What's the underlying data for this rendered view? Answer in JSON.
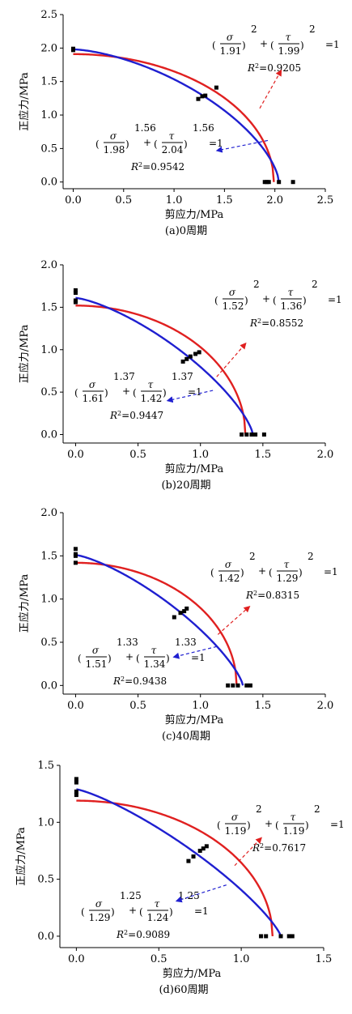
{
  "chart_data": [
    {
      "type": "scatter",
      "caption": "(a)0周期",
      "xlabel": "剪应力/MPa",
      "ylabel": "正应力/MPa",
      "xlim": [
        -0.1,
        2.5
      ],
      "ylim": [
        -0.1,
        2.5
      ],
      "xticks": [
        "0.0",
        "0.5",
        "1.0",
        "1.5",
        "2.0",
        "2.5"
      ],
      "yticks": [
        "0.0",
        "0.5",
        "1.0",
        "1.5",
        "2.0",
        "2.5"
      ],
      "points": [
        [
          0.0,
          1.97
        ],
        [
          0.0,
          1.99
        ],
        [
          1.24,
          1.24
        ],
        [
          1.28,
          1.28
        ],
        [
          1.31,
          1.29
        ],
        [
          1.42,
          1.41
        ],
        [
          1.9,
          0.0
        ],
        [
          1.92,
          0.0
        ],
        [
          1.94,
          0.0
        ],
        [
          2.04,
          0.0
        ],
        [
          2.18,
          0.0
        ]
      ],
      "series": [
        {
          "color": "#e02020",
          "sigma0": 1.91,
          "tau0": 1.99,
          "n": 2
        },
        {
          "color": "#1f1fd0",
          "sigma0": 1.98,
          "tau0": 2.04,
          "n": 1.56
        }
      ],
      "annotations": [
        {
          "sigma": "1.91",
          "tau": "1.99",
          "exp": "2",
          "r2": "0.9205"
        },
        {
          "sigma": "1.98",
          "tau": "2.04",
          "exp": "1.56",
          "r2": "0.9542"
        }
      ]
    },
    {
      "type": "scatter",
      "caption": "(b)20周期",
      "xlabel": "剪应力/MPa",
      "ylabel": "正应力/MPa",
      "xlim": [
        -0.1,
        2.0
      ],
      "ylim": [
        -0.1,
        2.0
      ],
      "xticks": [
        "0.0",
        "0.5",
        "1.0",
        "1.5",
        "2.0"
      ],
      "yticks": [
        "0.0",
        "0.5",
        "1.0",
        "1.5",
        "2.0"
      ],
      "points": [
        [
          0.0,
          1.56
        ],
        [
          0.0,
          1.58
        ],
        [
          0.0,
          1.67
        ],
        [
          0.0,
          1.7
        ],
        [
          0.86,
          0.86
        ],
        [
          0.89,
          0.89
        ],
        [
          0.92,
          0.92
        ],
        [
          0.96,
          0.95
        ],
        [
          0.99,
          0.97
        ],
        [
          1.33,
          0.0
        ],
        [
          1.37,
          0.0
        ],
        [
          1.41,
          0.0
        ],
        [
          1.44,
          0.0
        ],
        [
          1.51,
          0.0
        ]
      ],
      "series": [
        {
          "color": "#e02020",
          "sigma0": 1.52,
          "tau0": 1.36,
          "n": 2
        },
        {
          "color": "#1f1fd0",
          "sigma0": 1.61,
          "tau0": 1.42,
          "n": 1.37
        }
      ],
      "annotations": [
        {
          "sigma": "1.52",
          "tau": "1.36",
          "exp": "2",
          "r2": "0.8552"
        },
        {
          "sigma": "1.61",
          "tau": "1.42",
          "exp": "1.37",
          "r2": "0.9447"
        }
      ]
    },
    {
      "type": "scatter",
      "caption": "(c)40周期",
      "xlabel": "剪应力/MPa",
      "ylabel": "正应力/MPa",
      "xlim": [
        -0.1,
        2.0
      ],
      "ylim": [
        -0.1,
        2.0
      ],
      "xticks": [
        "0.0",
        "0.5",
        "1.0",
        "1.5",
        "2.0"
      ],
      "yticks": [
        "0.0",
        "0.5",
        "1.0",
        "1.5",
        "2.0"
      ],
      "points": [
        [
          0.0,
          1.42
        ],
        [
          0.0,
          1.5
        ],
        [
          0.0,
          1.52
        ],
        [
          0.0,
          1.58
        ],
        [
          0.79,
          0.79
        ],
        [
          0.84,
          0.84
        ],
        [
          0.87,
          0.86
        ],
        [
          0.89,
          0.89
        ],
        [
          1.22,
          0.0
        ],
        [
          1.26,
          0.0
        ],
        [
          1.3,
          0.0
        ],
        [
          1.37,
          0.0
        ],
        [
          1.4,
          0.0
        ]
      ],
      "series": [
        {
          "color": "#e02020",
          "sigma0": 1.42,
          "tau0": 1.29,
          "n": 2
        },
        {
          "color": "#1f1fd0",
          "sigma0": 1.51,
          "tau0": 1.34,
          "n": 1.33
        }
      ],
      "annotations": [
        {
          "sigma": "1.42",
          "tau": "1.29",
          "exp": "2",
          "r2": "0.8315"
        },
        {
          "sigma": "1.51",
          "tau": "1.34",
          "exp": "1.33",
          "r2": "0.9438"
        }
      ]
    },
    {
      "type": "scatter",
      "caption": "(d)60周期",
      "xlabel": "剪应力/MPa",
      "ylabel": "正应力/MPa",
      "xlim": [
        -0.1,
        1.5
      ],
      "ylim": [
        -0.1,
        1.5
      ],
      "xticks": [
        "0.0",
        "0.5",
        "1.0",
        "1.5"
      ],
      "yticks": [
        "0.0",
        "0.5",
        "1.0",
        "1.5"
      ],
      "points": [
        [
          0.0,
          1.24
        ],
        [
          0.0,
          1.27
        ],
        [
          0.0,
          1.35
        ],
        [
          0.0,
          1.38
        ],
        [
          0.68,
          0.66
        ],
        [
          0.71,
          0.7
        ],
        [
          0.75,
          0.75
        ],
        [
          0.77,
          0.77
        ],
        [
          0.79,
          0.79
        ],
        [
          1.12,
          0.0
        ],
        [
          1.15,
          0.0
        ],
        [
          1.24,
          0.0
        ],
        [
          1.29,
          0.0
        ],
        [
          1.31,
          0.0
        ]
      ],
      "series": [
        {
          "color": "#e02020",
          "sigma0": 1.19,
          "tau0": 1.19,
          "n": 2
        },
        {
          "color": "#1f1fd0",
          "sigma0": 1.29,
          "tau0": 1.24,
          "n": 1.25
        }
      ],
      "annotations": [
        {
          "sigma": "1.19",
          "tau": "1.19",
          "exp": "2",
          "r2": "0.7617"
        },
        {
          "sigma": "1.29",
          "tau": "1.24",
          "exp": "1.25",
          "r2": "0.9089"
        }
      ]
    }
  ]
}
